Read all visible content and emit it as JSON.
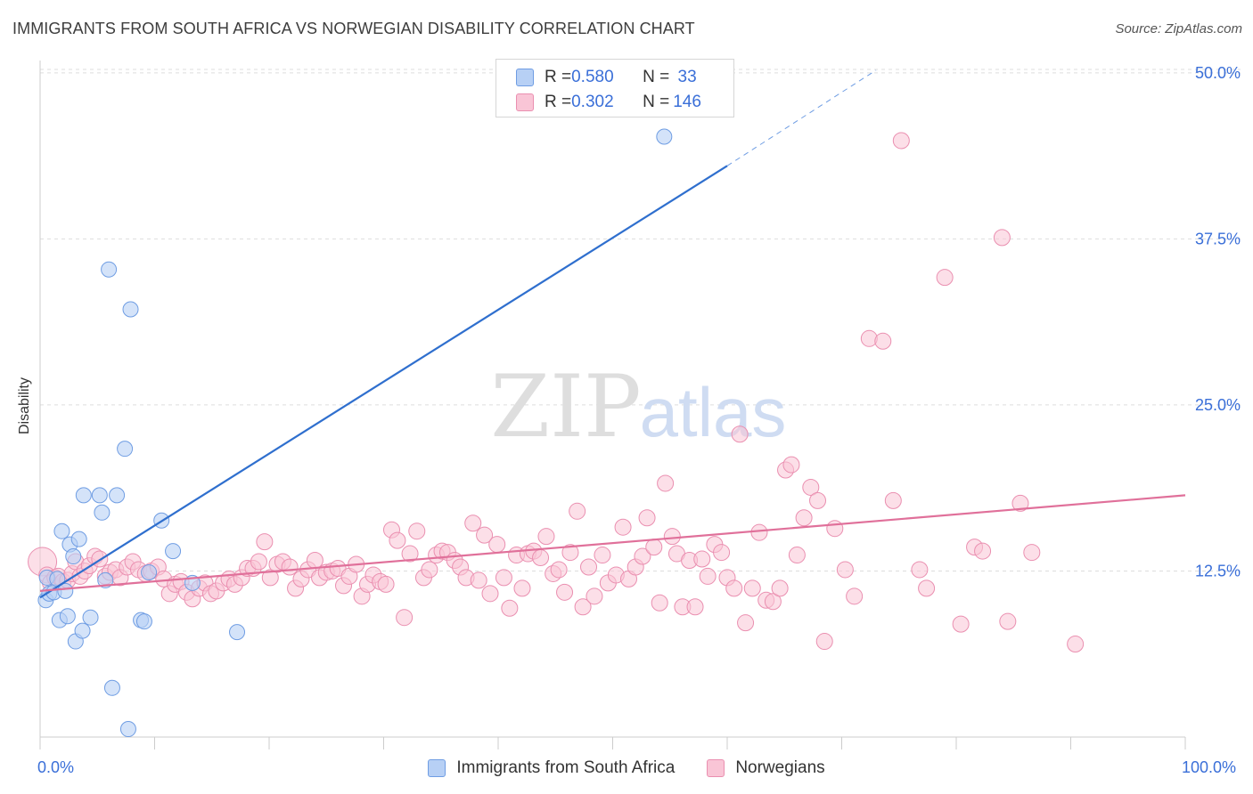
{
  "header": {
    "title": "IMMIGRANTS FROM SOUTH AFRICA VS NORWEGIAN DISABILITY CORRELATION CHART",
    "source": "Source: ZipAtlas.com"
  },
  "watermark": {
    "zip": "ZIP",
    "atlas": "atlas"
  },
  "legend": {
    "rows": [
      {
        "r_label": "R = ",
        "r_value": "0.580",
        "n_label": "N = ",
        "n_value": " 33",
        "fill": "#b7d0f5",
        "stroke": "#6f9de3"
      },
      {
        "r_label": "R = ",
        "r_value": "0.302",
        "n_label": "N = ",
        "n_value": "146",
        "fill": "#f9c5d6",
        "stroke": "#ea8fb0"
      }
    ]
  },
  "chart_data": {
    "type": "scatter",
    "title": "IMMIGRANTS FROM SOUTH AFRICA VS NORWEGIAN DISABILITY CORRELATION CHART",
    "xlabel": "",
    "ylabel": "Disability",
    "xlim": [
      0,
      100
    ],
    "ylim": [
      0,
      52
    ],
    "x_tick_labels": [
      "0.0%",
      "100.0%"
    ],
    "y_ticks": [
      12.5,
      25.0,
      37.5,
      50.0
    ],
    "y_tick_labels": [
      "12.5%",
      "25.0%",
      "37.5%",
      "50.0%"
    ],
    "grid": true,
    "legend_position": "top-center",
    "colors": {
      "blue_fill": "#b7d0f5",
      "blue_stroke": "#6f9de3",
      "blue_line": "#2f6fce",
      "pink_fill": "#f9c5d6",
      "pink_stroke": "#ea8fb0",
      "pink_line": "#e0709a"
    },
    "series": [
      {
        "name": "Immigrants from South Africa",
        "trend": {
          "x0": 0,
          "y0": 10.5,
          "x1": 60,
          "y1": 43.0,
          "dash_to_x": 73,
          "dash_to_y": 50.2
        },
        "points": [
          [
            0.5,
            10.3
          ],
          [
            0.6,
            12.0
          ],
          [
            0.8,
            10.8
          ],
          [
            1.2,
            10.9
          ],
          [
            1.5,
            11.9
          ],
          [
            1.7,
            8.8
          ],
          [
            1.9,
            15.5
          ],
          [
            2.2,
            11.0
          ],
          [
            2.4,
            9.1
          ],
          [
            2.6,
            14.5
          ],
          [
            2.9,
            13.6
          ],
          [
            3.1,
            7.2
          ],
          [
            3.4,
            14.9
          ],
          [
            3.7,
            8.0
          ],
          [
            3.8,
            18.2
          ],
          [
            4.4,
            9.0
          ],
          [
            5.2,
            18.2
          ],
          [
            5.4,
            16.9
          ],
          [
            5.7,
            11.8
          ],
          [
            6.0,
            35.2
          ],
          [
            6.3,
            3.7
          ],
          [
            6.7,
            18.2
          ],
          [
            7.4,
            21.7
          ],
          [
            7.7,
            0.6
          ],
          [
            7.9,
            32.2
          ],
          [
            8.8,
            8.8
          ],
          [
            9.1,
            8.7
          ],
          [
            9.5,
            12.4
          ],
          [
            10.6,
            16.3
          ],
          [
            11.6,
            14.0
          ],
          [
            13.3,
            11.6
          ],
          [
            17.2,
            7.9
          ],
          [
            54.5,
            45.2
          ]
        ]
      },
      {
        "name": "Norwegians",
        "trend": {
          "x0": 0,
          "y0": 11.0,
          "x1": 100,
          "y1": 18.2
        },
        "points": [
          [
            0.2,
            13.2
          ],
          [
            0.6,
            12.2
          ],
          [
            0.9,
            11.6
          ],
          [
            1.3,
            12.0
          ],
          [
            1.6,
            12.1
          ],
          [
            2.0,
            11.7
          ],
          [
            2.4,
            11.8
          ],
          [
            2.8,
            12.3
          ],
          [
            3.1,
            13.2
          ],
          [
            3.5,
            12.1
          ],
          [
            3.9,
            12.5
          ],
          [
            4.3,
            12.9
          ],
          [
            4.8,
            13.6
          ],
          [
            5.2,
            13.4
          ],
          [
            5.7,
            12.1
          ],
          [
            6.1,
            12.4
          ],
          [
            6.6,
            12.6
          ],
          [
            7.0,
            12.0
          ],
          [
            7.6,
            12.8
          ],
          [
            8.1,
            13.2
          ],
          [
            8.6,
            12.6
          ],
          [
            9.2,
            12.3
          ],
          [
            9.7,
            12.5
          ],
          [
            10.3,
            12.8
          ],
          [
            10.8,
            11.9
          ],
          [
            11.3,
            10.8
          ],
          [
            11.8,
            11.5
          ],
          [
            12.3,
            11.7
          ],
          [
            12.8,
            10.9
          ],
          [
            13.3,
            10.4
          ],
          [
            13.9,
            11.2
          ],
          [
            14.4,
            11.6
          ],
          [
            14.9,
            10.8
          ],
          [
            15.4,
            11.0
          ],
          [
            16.0,
            11.6
          ],
          [
            16.5,
            11.9
          ],
          [
            17.0,
            11.5
          ],
          [
            17.6,
            12.0
          ],
          [
            18.1,
            12.7
          ],
          [
            18.6,
            12.7
          ],
          [
            19.1,
            13.2
          ],
          [
            19.6,
            14.7
          ],
          [
            20.1,
            12.0
          ],
          [
            20.7,
            13.0
          ],
          [
            21.2,
            13.2
          ],
          [
            21.8,
            12.8
          ],
          [
            22.3,
            11.2
          ],
          [
            22.8,
            11.9
          ],
          [
            23.4,
            12.6
          ],
          [
            24.0,
            13.3
          ],
          [
            24.4,
            12.0
          ],
          [
            25.0,
            12.4
          ],
          [
            25.5,
            12.5
          ],
          [
            26.0,
            12.7
          ],
          [
            26.5,
            11.4
          ],
          [
            27.0,
            12.1
          ],
          [
            27.6,
            13.0
          ],
          [
            28.1,
            10.6
          ],
          [
            28.6,
            11.5
          ],
          [
            29.1,
            12.2
          ],
          [
            29.7,
            11.7
          ],
          [
            30.2,
            11.5
          ],
          [
            30.7,
            15.6
          ],
          [
            31.2,
            14.8
          ],
          [
            31.8,
            9.0
          ],
          [
            32.3,
            13.8
          ],
          [
            32.9,
            15.5
          ],
          [
            33.5,
            12.0
          ],
          [
            34.0,
            12.6
          ],
          [
            34.6,
            13.7
          ],
          [
            35.1,
            14.0
          ],
          [
            35.6,
            13.9
          ],
          [
            36.2,
            13.3
          ],
          [
            36.7,
            12.8
          ],
          [
            37.2,
            12.0
          ],
          [
            37.8,
            16.1
          ],
          [
            38.3,
            11.8
          ],
          [
            38.8,
            15.2
          ],
          [
            39.3,
            10.8
          ],
          [
            39.9,
            14.5
          ],
          [
            40.5,
            12.0
          ],
          [
            41.0,
            9.7
          ],
          [
            41.6,
            13.7
          ],
          [
            42.1,
            11.2
          ],
          [
            42.6,
            13.8
          ],
          [
            43.1,
            14.0
          ],
          [
            43.7,
            13.5
          ],
          [
            44.2,
            15.1
          ],
          [
            44.8,
            12.3
          ],
          [
            45.3,
            12.6
          ],
          [
            45.8,
            10.9
          ],
          [
            46.3,
            13.9
          ],
          [
            46.9,
            17.0
          ],
          [
            47.4,
            9.8
          ],
          [
            47.9,
            12.8
          ],
          [
            48.4,
            10.6
          ],
          [
            49.1,
            13.7
          ],
          [
            49.6,
            11.6
          ],
          [
            50.3,
            12.2
          ],
          [
            50.9,
            15.8
          ],
          [
            51.4,
            11.9
          ],
          [
            52.0,
            12.8
          ],
          [
            52.6,
            13.6
          ],
          [
            53.0,
            16.5
          ],
          [
            53.6,
            14.3
          ],
          [
            54.1,
            10.1
          ],
          [
            54.6,
            19.1
          ],
          [
            55.2,
            15.1
          ],
          [
            55.6,
            13.8
          ],
          [
            56.1,
            9.8
          ],
          [
            56.7,
            13.3
          ],
          [
            57.2,
            9.8
          ],
          [
            57.8,
            13.4
          ],
          [
            58.3,
            12.1
          ],
          [
            58.9,
            14.5
          ],
          [
            59.5,
            13.9
          ],
          [
            60.0,
            12.0
          ],
          [
            60.6,
            11.2
          ],
          [
            61.1,
            22.8
          ],
          [
            61.6,
            8.6
          ],
          [
            62.2,
            11.2
          ],
          [
            62.8,
            15.4
          ],
          [
            63.4,
            10.3
          ],
          [
            64.0,
            10.2
          ],
          [
            64.6,
            11.2
          ],
          [
            65.1,
            20.1
          ],
          [
            65.6,
            20.5
          ],
          [
            66.1,
            13.7
          ],
          [
            66.7,
            16.5
          ],
          [
            67.3,
            18.8
          ],
          [
            67.9,
            17.8
          ],
          [
            68.5,
            7.2
          ],
          [
            69.4,
            15.7
          ],
          [
            70.3,
            12.6
          ],
          [
            71.1,
            10.6
          ],
          [
            72.4,
            30.0
          ],
          [
            73.6,
            29.8
          ],
          [
            74.5,
            17.8
          ],
          [
            75.2,
            44.9
          ],
          [
            76.8,
            12.6
          ],
          [
            77.4,
            11.2
          ],
          [
            79.0,
            34.6
          ],
          [
            80.4,
            8.5
          ],
          [
            81.6,
            14.3
          ],
          [
            82.3,
            14.0
          ],
          [
            84.0,
            37.6
          ],
          [
            84.5,
            8.7
          ],
          [
            85.6,
            17.6
          ],
          [
            86.6,
            13.9
          ],
          [
            90.4,
            7.0
          ]
        ]
      }
    ]
  }
}
